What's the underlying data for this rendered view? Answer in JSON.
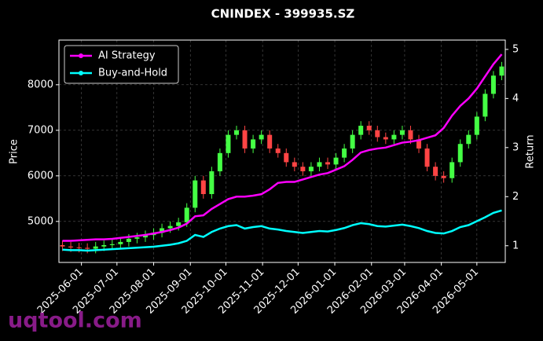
{
  "chart_data": {
    "type": "candlestick",
    "title": "CNINDEX - 399935.SZ",
    "ylabel": "Price",
    "y2label": "Return",
    "watermark": "uqtool.com",
    "x": [
      "2025-05-16",
      "2025-05-23",
      "2025-05-30",
      "2025-06-06",
      "2025-06-13",
      "2025-06-20",
      "2025-06-27",
      "2025-07-04",
      "2025-07-11",
      "2025-07-18",
      "2025-07-25",
      "2025-08-01",
      "2025-08-08",
      "2025-08-15",
      "2025-08-22",
      "2025-08-29",
      "2025-09-05",
      "2025-09-12",
      "2025-09-19",
      "2025-09-26",
      "2025-10-03",
      "2025-10-10",
      "2025-10-17",
      "2025-10-24",
      "2025-10-31",
      "2025-11-07",
      "2025-11-14",
      "2025-11-21",
      "2025-11-28",
      "2025-12-05",
      "2025-12-12",
      "2025-12-19",
      "2025-12-26",
      "2026-01-02",
      "2026-01-09",
      "2026-01-16",
      "2026-01-23",
      "2026-01-30",
      "2026-02-06",
      "2026-02-13",
      "2026-02-20",
      "2026-02-27",
      "2026-03-06",
      "2026-03-13",
      "2026-03-20",
      "2026-03-27",
      "2026-04-03",
      "2026-04-10",
      "2026-04-17",
      "2026-04-24",
      "2026-05-01",
      "2026-05-08",
      "2026-05-15",
      "2026-05-22"
    ],
    "open": [
      4480,
      4450,
      4430,
      4420,
      4400,
      4450,
      4480,
      4500,
      4550,
      4620,
      4650,
      4700,
      4750,
      4850,
      4900,
      4980,
      5300,
      5900,
      5600,
      6100,
      6500,
      6900,
      7000,
      6600,
      6800,
      6900,
      6600,
      6500,
      6300,
      6200,
      6100,
      6200,
      6300,
      6250,
      6400,
      6600,
      6900,
      7100,
      7000,
      6850,
      6800,
      6900,
      7000,
      6800,
      6600,
      6200,
      6000,
      5950,
      6300,
      6700,
      6900,
      7300,
      7800,
      8200
    ],
    "high": [
      4580,
      4550,
      4530,
      4520,
      4550,
      4580,
      4600,
      4650,
      4720,
      4750,
      4800,
      4850,
      4950,
      5000,
      5080,
      5400,
      6000,
      6000,
      6200,
      6600,
      7000,
      7100,
      7100,
      6900,
      7000,
      7000,
      6700,
      6600,
      6400,
      6300,
      6300,
      6400,
      6400,
      6500,
      6700,
      7000,
      7200,
      7200,
      7100,
      6950,
      7000,
      7100,
      7100,
      6900,
      6700,
      6300,
      6100,
      6400,
      6800,
      7000,
      7400,
      7900,
      8300,
      8500
    ],
    "low": [
      4350,
      4330,
      4320,
      4300,
      4300,
      4350,
      4380,
      4400,
      4450,
      4520,
      4550,
      4600,
      4650,
      4750,
      4800,
      4880,
      5200,
      5500,
      5500,
      6000,
      6400,
      6800,
      6500,
      6500,
      6700,
      6500,
      6400,
      6200,
      6100,
      6000,
      6000,
      6100,
      6150,
      6150,
      6300,
      6500,
      6800,
      6900,
      6750,
      6700,
      6700,
      6800,
      6700,
      6500,
      6100,
      5900,
      5850,
      5850,
      6200,
      6600,
      6800,
      7200,
      7700,
      8100
    ],
    "close": [
      4450,
      4430,
      4420,
      4400,
      4450,
      4480,
      4500,
      4550,
      4620,
      4650,
      4700,
      4750,
      4850,
      4900,
      4980,
      5300,
      5900,
      5600,
      6100,
      6500,
      6900,
      7000,
      6600,
      6800,
      6900,
      6600,
      6500,
      6300,
      6200,
      6100,
      6200,
      6300,
      6250,
      6400,
      6600,
      6900,
      7100,
      7000,
      6850,
      6800,
      6900,
      7000,
      6800,
      6600,
      6200,
      6000,
      5950,
      6300,
      6700,
      6900,
      7300,
      7800,
      8200,
      8400
    ],
    "up_color": "#44ff44",
    "down_color": "#ff4444",
    "series": [
      {
        "name": "AI Strategy",
        "color": "#ff00ff",
        "axis": "y2",
        "values": [
          1.1,
          1.1,
          1.11,
          1.12,
          1.13,
          1.13,
          1.14,
          1.16,
          1.18,
          1.2,
          1.22,
          1.25,
          1.28,
          1.32,
          1.37,
          1.45,
          1.6,
          1.62,
          1.75,
          1.85,
          1.95,
          2.0,
          2.0,
          2.02,
          2.05,
          2.15,
          2.28,
          2.3,
          2.3,
          2.35,
          2.4,
          2.45,
          2.48,
          2.55,
          2.62,
          2.75,
          2.9,
          2.95,
          2.98,
          3.0,
          3.05,
          3.1,
          3.12,
          3.15,
          3.2,
          3.25,
          3.4,
          3.65,
          3.85,
          4.0,
          4.2,
          4.45,
          4.7,
          4.9
        ]
      },
      {
        "name": "Buy-and-Hold",
        "color": "#00ffff",
        "axis": "y2",
        "values": [
          0.92,
          0.91,
          0.91,
          0.9,
          0.91,
          0.92,
          0.93,
          0.94,
          0.95,
          0.96,
          0.97,
          0.98,
          1.0,
          1.02,
          1.05,
          1.1,
          1.22,
          1.18,
          1.28,
          1.35,
          1.4,
          1.42,
          1.35,
          1.38,
          1.4,
          1.35,
          1.33,
          1.3,
          1.28,
          1.26,
          1.28,
          1.3,
          1.29,
          1.32,
          1.36,
          1.42,
          1.46,
          1.44,
          1.4,
          1.39,
          1.41,
          1.43,
          1.4,
          1.36,
          1.3,
          1.26,
          1.25,
          1.3,
          1.38,
          1.42,
          1.5,
          1.58,
          1.67,
          1.72
        ]
      }
    ],
    "xlim": [
      "2025-05-13",
      "2026-05-25"
    ],
    "xticks": [
      "2025-06-01",
      "2025-07-01",
      "2025-08-01",
      "2025-09-01",
      "2025-10-01",
      "2025-11-01",
      "2025-12-01",
      "2026-01-01",
      "2026-02-01",
      "2026-03-01",
      "2026-04-01",
      "2026-05-01"
    ],
    "ylim": [
      4100,
      8980
    ],
    "yticks": [
      5000,
      6000,
      7000,
      8000
    ],
    "y2lim": [
      0.66,
      5.19
    ],
    "y2ticks": [
      1,
      2,
      3,
      4,
      5
    ],
    "grid": true,
    "legend": "upper left"
  }
}
